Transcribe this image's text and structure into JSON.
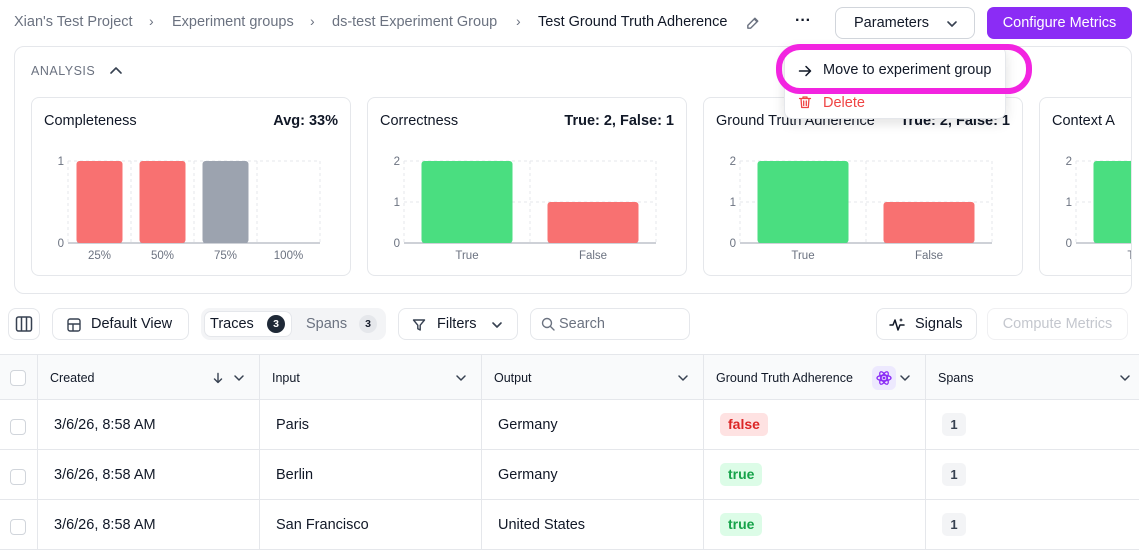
{
  "breadcrumb": [
    {
      "label": "Xian's Test Project"
    },
    {
      "label": "Experiment groups"
    },
    {
      "label": "ds-test Experiment Group"
    },
    {
      "label": "Test Ground Truth Adherence"
    }
  ],
  "header": {
    "more_label": "···",
    "parameters_label": "Parameters",
    "configure_label": "Configure Metrics"
  },
  "menu": {
    "move_label": "Move to experiment group",
    "delete_label": "Delete"
  },
  "analysis": {
    "title": "ANALYSIS",
    "cards": [
      {
        "title": "Completeness",
        "stat": "Avg: 33%"
      },
      {
        "title": "Correctness",
        "stat": "True: 2, False: 1"
      },
      {
        "title": "Ground Truth Adherence",
        "stat": "True: 2, False: 1"
      },
      {
        "title": "Context A",
        "stat": ""
      }
    ]
  },
  "chart_data": [
    {
      "type": "bar",
      "categories": [
        "25%",
        "50%",
        "75%",
        "100%"
      ],
      "values": [
        1,
        1,
        1,
        0
      ],
      "ylim": [
        0,
        1
      ],
      "yticks": [
        "1",
        "0"
      ],
      "colors": [
        "#f87171",
        "#f87171",
        "#9ca3af",
        "#f87171"
      ]
    },
    {
      "type": "bar",
      "categories": [
        "True",
        "False"
      ],
      "values": [
        2,
        1
      ],
      "ylim": [
        0,
        2
      ],
      "yticks": [
        "2",
        "1",
        "0"
      ],
      "colors": [
        "#4ade80",
        "#f87171"
      ]
    },
    {
      "type": "bar",
      "categories": [
        "True",
        "False"
      ],
      "values": [
        2,
        1
      ],
      "ylim": [
        0,
        2
      ],
      "yticks": [
        "2",
        "1",
        "0"
      ],
      "colors": [
        "#4ade80",
        "#f87171"
      ]
    },
    {
      "type": "bar",
      "categories": [
        "True"
      ],
      "values": [
        2
      ],
      "ylim": [
        0,
        2
      ],
      "yticks": [
        "2",
        "1",
        "0"
      ],
      "colors": [
        "#4ade80"
      ]
    }
  ],
  "toolbar": {
    "default_view_label": "Default View",
    "traces_label": "Traces",
    "traces_count": "3",
    "spans_label": "Spans",
    "spans_count": "3",
    "filters_label": "Filters",
    "search_placeholder": "Search",
    "signals_label": "Signals",
    "compute_label": "Compute Metrics"
  },
  "table": {
    "columns": [
      "Created",
      "Input",
      "Output",
      "Ground Truth Adherence",
      "Spans"
    ],
    "rows": [
      {
        "created": "3/6/26, 8:58 AM",
        "input": "Paris",
        "output": "Germany",
        "gta": "false",
        "spans": "1"
      },
      {
        "created": "3/6/26, 8:58 AM",
        "input": "Berlin",
        "output": "Germany",
        "gta": "true",
        "spans": "1"
      },
      {
        "created": "3/6/26, 8:58 AM",
        "input": "San Francisco",
        "output": "United States",
        "gta": "true",
        "spans": "1"
      }
    ]
  }
}
